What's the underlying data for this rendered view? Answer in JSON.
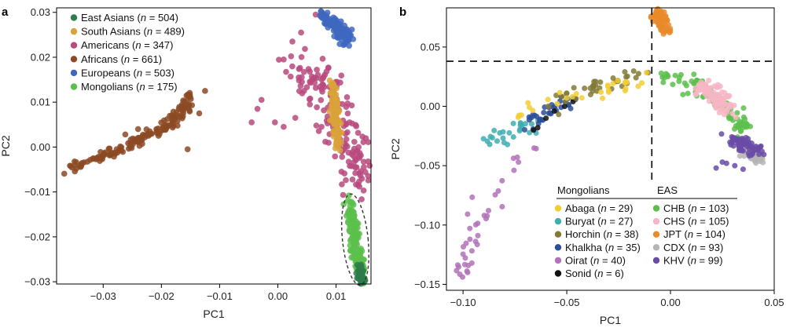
{
  "colors": {
    "East Asians": "#2e7d4a",
    "South Asians": "#d9a23a",
    "Americans": "#b84a7e",
    "Africans": "#8c4a24",
    "Europeans": "#3e68c0",
    "Mongolians": "#5cbf4c",
    "Abaga": "#f2cd33",
    "Buryat": "#40aeb0",
    "Horchin": "#827a36",
    "Khalkha": "#2d4f9a",
    "Oirat": "#b072b8",
    "Sonid": "#111111",
    "CHB": "#5cbf4c",
    "CHS": "#f7b6c4",
    "JPT": "#e98b2a",
    "CDX": "#b5b5b5",
    "KHV": "#6a4ba8"
  },
  "chart_data": [
    {
      "panel": "a",
      "type": "scatter",
      "xlabel": "PC1",
      "ylabel": "PC2",
      "xlim": [
        -0.038,
        0.016
      ],
      "ylim": [
        -0.0305,
        0.031
      ],
      "xticks": [
        -0.03,
        -0.02,
        -0.01,
        0.0,
        0.01
      ],
      "xtick_labels": [
        "−0.03",
        "−0.02",
        "−0.01",
        "0.00",
        "0.01"
      ],
      "yticks": [
        -0.03,
        -0.02,
        -0.01,
        0.0,
        0.01,
        0.02,
        0.03
      ],
      "ytick_labels": [
        "−0.03",
        "−0.02",
        "−0.01",
        "0.00",
        "0.01",
        "0.02",
        "0.03"
      ],
      "grid": false,
      "legend_position": "top-left",
      "legend": [
        {
          "group": "East Asians",
          "name": "East Asians",
          "n": "504"
        },
        {
          "group": "South Asians",
          "name": "South Asians",
          "n": "489"
        },
        {
          "group": "Americans",
          "name": "Americans",
          "n": "347"
        },
        {
          "group": "Africans",
          "name": "Africans",
          "n": "661"
        },
        {
          "group": "Europeans",
          "name": "Europeans",
          "n": "503"
        },
        {
          "group": "Mongolians",
          "name": "Mongolians",
          "n": "175"
        }
      ],
      "clusters": [
        {
          "group": "Africans",
          "count": 150,
          "line": [
            [
              -0.036,
              -0.0045
            ],
            [
              -0.027,
              -0.0005
            ],
            [
              -0.018,
              0.0055
            ],
            [
              -0.0155,
              0.0095
            ],
            [
              -0.015,
              0.0115
            ]
          ],
          "spread": [
            0.0006,
            0.0006
          ]
        },
        {
          "group": "Africans",
          "count": 10,
          "points": [
            [
              -0.0155,
              -0.0005
            ],
            [
              -0.024,
              0.004
            ],
            [
              -0.0235,
              0.0015
            ],
            [
              -0.022,
              0.0035
            ],
            [
              -0.0205,
              0.0025
            ],
            [
              -0.019,
              0.0062
            ],
            [
              -0.0262,
              0.0028
            ],
            [
              -0.017,
              0.0085
            ],
            [
              -0.0135,
              0.0075
            ],
            [
              -0.0125,
              0.0125
            ]
          ]
        },
        {
          "group": "Americans",
          "count": 170,
          "line": [
            [
              0.0025,
              0.0175
            ],
            [
              0.006,
              0.0165
            ],
            [
              0.009,
              0.012
            ],
            [
              0.0105,
              0.006
            ],
            [
              0.012,
              0.001
            ],
            [
              0.0135,
              -0.0035
            ],
            [
              0.0145,
              -0.0085
            ]
          ],
          "spread": [
            0.0015,
            0.002
          ]
        },
        {
          "group": "Americans",
          "count": 14,
          "points": [
            [
              0.0065,
              0.0295
            ],
            [
              0.004,
              0.0255
            ],
            [
              0.0025,
              0.0235
            ],
            [
              0.001,
              0.0195
            ],
            [
              -0.0028,
              0.0105
            ],
            [
              -0.0035,
              0.0085
            ],
            [
              -0.0045,
              0.0055
            ],
            [
              -0.0005,
              0.0055
            ],
            [
              0.001,
              0.0045
            ],
            [
              0.003,
              0.0065
            ],
            [
              0.0055,
              0.0095
            ],
            [
              0.0045,
              0.0125
            ],
            [
              0.0075,
              0.0045
            ],
            [
              0.011,
              -0.001
            ]
          ]
        },
        {
          "group": "South Asians",
          "count": 110,
          "line": [
            [
              0.0095,
              0.0135
            ],
            [
              0.0102,
              0.0005
            ]
          ],
          "spread": [
            0.00035,
            0.0012
          ]
        },
        {
          "group": "Europeans",
          "count": 110,
          "line": [
            [
              0.0075,
              0.0295
            ],
            [
              0.0105,
              0.0265
            ],
            [
              0.012,
              0.024
            ]
          ],
          "spread": [
            0.0005,
            0.0009
          ]
        },
        {
          "group": "Mongolians",
          "count": 150,
          "line": [
            [
              0.0122,
              -0.0125
            ],
            [
              0.0142,
              -0.028
            ]
          ],
          "spread": [
            0.00045,
            0.0011
          ]
        },
        {
          "group": "East Asians",
          "count": 45,
          "line": [
            [
              0.0138,
              -0.0265
            ],
            [
              0.0145,
              -0.0298
            ]
          ],
          "spread": [
            0.00035,
            0.0006
          ]
        }
      ],
      "annotation": {
        "type": "dashed-ellipse",
        "center": [
          0.0133,
          -0.0206
        ],
        "radii": [
          0.0022,
          0.0102
        ]
      }
    },
    {
      "panel": "b",
      "type": "scatter",
      "xlabel": "PC1",
      "ylabel": "PC2",
      "xlim": [
        -0.108,
        0.05
      ],
      "ylim": [
        -0.155,
        0.083
      ],
      "xticks": [
        -0.1,
        -0.05,
        0.0,
        0.05
      ],
      "xtick_labels": [
        "−0.10",
        "−0.05",
        "0.00",
        "0.05"
      ],
      "yticks": [
        -0.15,
        -0.1,
        -0.05,
        0.0,
        0.05
      ],
      "ytick_labels": [
        "−0.15",
        "−0.10",
        "−0.05",
        "0.00",
        "0.05"
      ],
      "grid": false,
      "legend_position": "bottom-right",
      "legend_headers": [
        "Mongolians",
        "EAS"
      ],
      "legend": [
        {
          "group": "Abaga",
          "name": "Abaga",
          "n": "29",
          "column": 0
        },
        {
          "group": "Buryat",
          "name": "Buryat",
          "n": "27",
          "column": 0
        },
        {
          "group": "Horchin",
          "name": "Horchin",
          "n": "38",
          "column": 0
        },
        {
          "group": "Khalkha",
          "name": "Khalkha",
          "n": "35",
          "column": 0
        },
        {
          "group": "Oirat",
          "name": "Oirat",
          "n": "40",
          "column": 0
        },
        {
          "group": "Sonid",
          "name": "Sonid",
          "n": "6",
          "column": 0
        },
        {
          "group": "CHB",
          "name": "CHB",
          "n": "103",
          "column": 1
        },
        {
          "group": "CHS",
          "name": "CHS",
          "n": "105",
          "column": 1
        },
        {
          "group": "JPT",
          "name": "JPT",
          "n": "104",
          "column": 1
        },
        {
          "group": "CDX",
          "name": "CDX",
          "n": "93",
          "column": 1
        },
        {
          "group": "KHV",
          "name": "KHV",
          "n": "99",
          "column": 1
        }
      ],
      "threshold_lines": {
        "x": -0.009,
        "y": 0.038
      },
      "clusters": [
        {
          "group": "Oirat",
          "count": 38,
          "line": [
            [
              -0.101,
              -0.147
            ],
            [
              -0.095,
              -0.105
            ],
            [
              -0.088,
              -0.083
            ],
            [
              -0.082,
              -0.067
            ],
            [
              -0.072,
              -0.045
            ],
            [
              -0.064,
              -0.031
            ]
          ],
          "spread": [
            0.003,
            0.005
          ]
        },
        {
          "group": "Buryat",
          "count": 27,
          "line": [
            [
              -0.087,
              -0.03
            ],
            [
              -0.08,
              -0.022
            ],
            [
              -0.072,
              -0.018
            ],
            [
              -0.064,
              -0.012
            ]
          ],
          "spread": [
            0.003,
            0.004
          ]
        },
        {
          "group": "Khalkha",
          "count": 34,
          "line": [
            [
              -0.072,
              -0.02
            ],
            [
              -0.064,
              -0.01
            ],
            [
              -0.055,
              0.0
            ],
            [
              -0.045,
              0.008
            ]
          ],
          "spread": [
            0.003,
            0.003
          ]
        },
        {
          "group": "Sonid",
          "count": 6,
          "points": [
            [
              -0.064,
              -0.018
            ],
            [
              -0.06,
              -0.01
            ],
            [
              -0.056,
              -0.004
            ],
            [
              -0.051,
              0.0
            ],
            [
              -0.047,
              0.004
            ],
            [
              -0.066,
              -0.02
            ]
          ]
        },
        {
          "group": "Horchin",
          "count": 38,
          "line": [
            [
              -0.052,
              0.004
            ],
            [
              -0.042,
              0.012
            ],
            [
              -0.032,
              0.02
            ],
            [
              -0.02,
              0.025
            ],
            [
              -0.01,
              0.028
            ]
          ],
          "spread": [
            0.003,
            0.003
          ]
        },
        {
          "group": "Abaga",
          "count": 29,
          "line": [
            [
              -0.08,
              -0.01
            ],
            [
              -0.06,
              0.0
            ],
            [
              -0.04,
              0.012
            ],
            [
              -0.025,
              0.02
            ],
            [
              -0.013,
              0.026
            ]
          ],
          "spread": [
            0.004,
            0.003
          ]
        },
        {
          "group": "CHB",
          "count": 85,
          "line": [
            [
              -0.003,
              0.028
            ],
            [
              0.006,
              0.022
            ],
            [
              0.014,
              0.015
            ],
            [
              0.022,
              0.005
            ],
            [
              0.03,
              -0.008
            ],
            [
              0.036,
              -0.02
            ]
          ],
          "spread": [
            0.003,
            0.003
          ]
        },
        {
          "group": "CHS",
          "count": 85,
          "line": [
            [
              0.015,
              0.016
            ],
            [
              0.022,
              0.008
            ],
            [
              0.028,
              -0.002
            ]
          ],
          "spread": [
            0.0025,
            0.004
          ]
        },
        {
          "group": "JPT",
          "count": 70,
          "line": [
            [
              -0.006,
              0.079
            ],
            [
              -0.004,
              0.068
            ],
            [
              -0.001,
              0.062
            ]
          ],
          "spread": [
            0.0015,
            0.0025
          ]
        },
        {
          "group": "CDX",
          "count": 55,
          "line": [
            [
              0.037,
              -0.036
            ],
            [
              0.042,
              -0.045
            ]
          ],
          "spread": [
            0.002,
            0.002
          ]
        },
        {
          "group": "KHV",
          "count": 70,
          "line": [
            [
              0.031,
              -0.028
            ],
            [
              0.036,
              -0.034
            ],
            [
              0.041,
              -0.038
            ]
          ],
          "spread": [
            0.0025,
            0.003
          ]
        },
        {
          "group": "KHV",
          "count": 5,
          "points": [
            [
              0.027,
              -0.048
            ],
            [
              0.031,
              -0.05
            ],
            [
              0.022,
              -0.052
            ],
            [
              0.035,
              -0.053
            ],
            [
              0.025,
              -0.047
            ]
          ]
        }
      ]
    }
  ]
}
